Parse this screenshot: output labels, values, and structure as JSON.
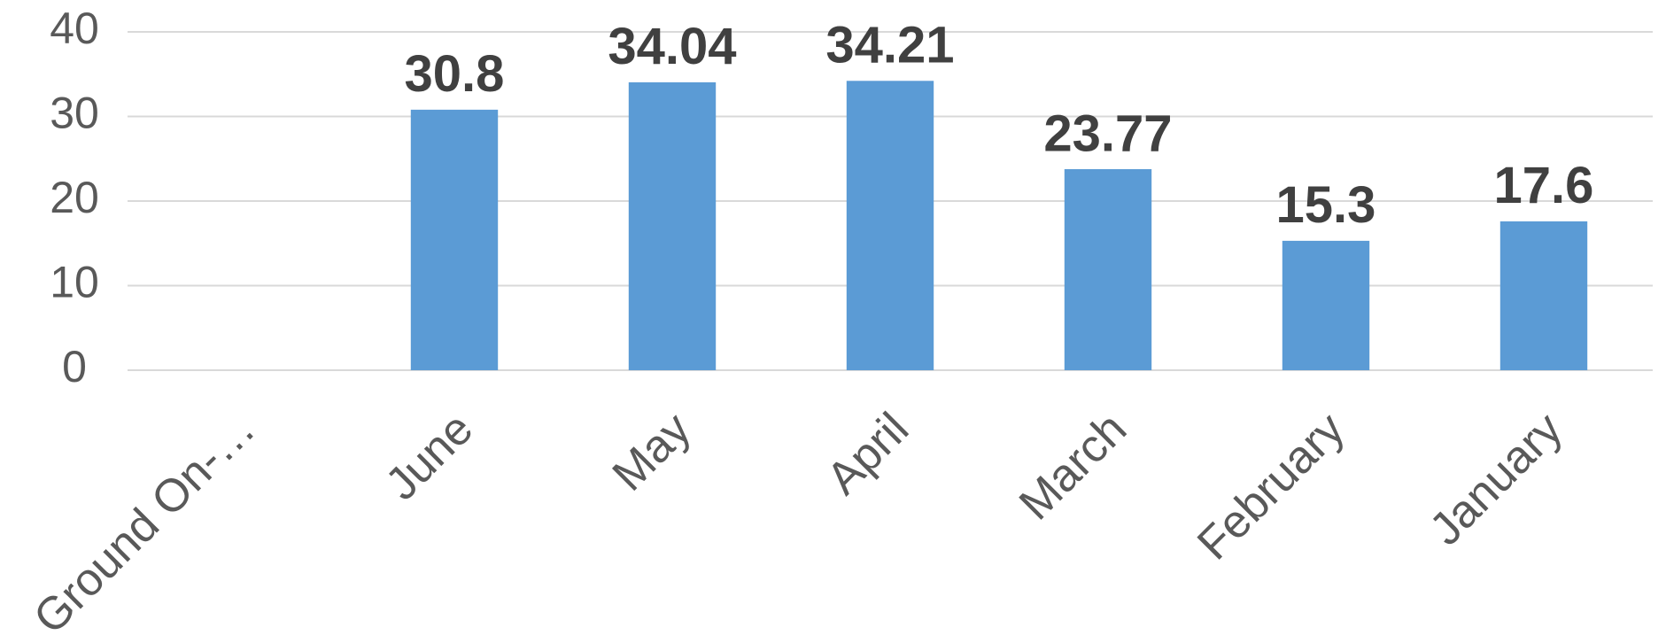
{
  "chart_data": {
    "type": "bar",
    "categories": [
      "Ground On-…",
      "June",
      "May",
      "April",
      "March",
      "February",
      "January"
    ],
    "values": [
      null,
      30.8,
      34.04,
      34.21,
      23.77,
      15.3,
      17.6
    ],
    "color": "#5b9bd5",
    "ylim": [
      0,
      40
    ],
    "yticks": [
      0,
      10,
      20,
      30,
      40
    ],
    "grid": true
  }
}
